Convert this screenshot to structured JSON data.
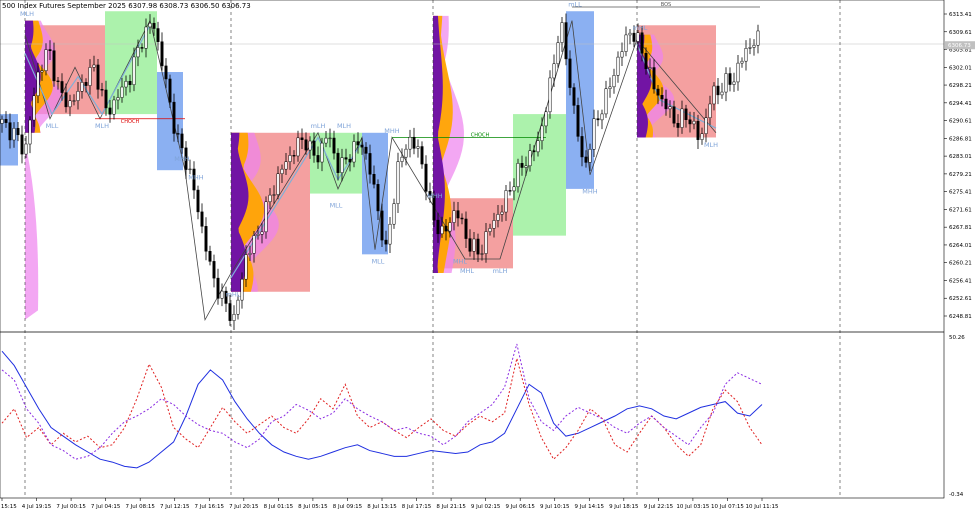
{
  "header": {
    "symbol": "500 Index Futures September 2025",
    "ohlc": "6307.98 6308.73 6306.50 6306.73"
  },
  "colors": {
    "bull": "#000000",
    "bear": "#000000",
    "sell_zone": "#f08080",
    "buy_zone": "#90ee90",
    "mid_zone": "#6495ed",
    "profile_orange": "#ffa500",
    "profile_purple": "#6a0dad",
    "profile_pink": "#ee82ee",
    "osc_blue": "#1f2fe0",
    "osc_red": "#e02020",
    "osc_purple": "#8a2be2"
  },
  "chart_data": [
    {
      "type": "candlestick",
      "title": "",
      "y_ticks": [
        "6313.41",
        "6309.61",
        "6305.81",
        "6302.01",
        "6298.21",
        "6294.41",
        "6290.61",
        "6286.81",
        "6283.01",
        "6279.21",
        "6275.41",
        "6271.61",
        "6267.81",
        "6264.01",
        "6260.21",
        "6256.41",
        "6252.61",
        "6248.81"
      ],
      "price_badge": "6306.73",
      "x_ticks": [
        "4 Jul 15:15",
        "4 Jul 19:15",
        "7 Jul 00:15",
        "7 Jul 04:15",
        "7 Jul 08:15",
        "7 Jul 12:15",
        "7 Jul 16:15",
        "7 Jul 20:15",
        "8 Jul 01:15",
        "8 Jul 05:15",
        "8 Jul 09:15",
        "8 Jul 13:15",
        "8 Jul 17:15",
        "8 Jul 21:15",
        "9 Jul 02:15",
        "9 Jul 06:15",
        "9 Jul 10:15",
        "9 Jul 14:15",
        "9 Jul 18:15",
        "9 Jul 22:15",
        "10 Jul 03:15",
        "10 Jul 07:15",
        "10 Jul 11:15"
      ],
      "labels": [
        "MLL",
        "MLH",
        "MLH",
        "MHH",
        "MHH",
        "mLH",
        "MLL",
        "MHH",
        "MLH",
        "MLL",
        "MHH",
        "mLH",
        "MHL",
        "MHL",
        "mLL",
        "MHH",
        "mHL",
        "MLH",
        "mHL"
      ],
      "choch_label": "CHOCH",
      "bos_label": "BOS",
      "close_path": [
        6290,
        6288,
        6284,
        6300,
        6306,
        6296,
        6294,
        6299,
        6302,
        6292,
        6296,
        6300,
        6308,
        6312,
        6300,
        6287,
        6281,
        6270,
        6258,
        6252,
        6248,
        6262,
        6266,
        6274,
        6280,
        6284,
        6287,
        6282,
        6288,
        6280,
        6284,
        6286,
        6276,
        6262,
        6280,
        6287,
        6283,
        6270,
        6266,
        6272,
        6265,
        6262,
        6268,
        6272,
        6278,
        6282,
        6285,
        6296,
        6312,
        6296,
        6280,
        6290,
        6296,
        6304,
        6310,
        6306,
        6298,
        6294,
        6290,
        6292,
        6286,
        6296,
        6298,
        6300,
        6306,
        6308
      ]
    },
    {
      "type": "line",
      "title": "",
      "y_ticks": [
        "50.26",
        "-0.34"
      ],
      "series": [
        {
          "values": [
            0.95,
            0.85,
            0.7,
            0.55,
            0.42,
            0.36,
            0.3,
            0.25,
            0.2,
            0.18,
            0.15,
            0.14,
            0.18,
            0.25,
            0.32,
            0.5,
            0.72,
            0.82,
            0.75,
            0.6,
            0.48,
            0.38,
            0.3,
            0.25,
            0.22,
            0.2,
            0.22,
            0.25,
            0.28,
            0.3,
            0.26,
            0.24,
            0.22,
            0.22,
            0.24,
            0.26,
            0.25,
            0.24,
            0.25,
            0.3,
            0.32,
            0.38,
            0.55,
            0.72,
            0.66,
            0.45,
            0.36,
            0.38,
            0.42,
            0.46,
            0.5,
            0.55,
            0.57,
            0.55,
            0.5,
            0.48,
            0.52,
            0.56,
            0.58,
            0.6,
            0.52,
            0.5,
            0.58
          ]
        },
        {
          "values": [
            0.45,
            0.55,
            0.35,
            0.42,
            0.3,
            0.38,
            0.32,
            0.36,
            0.28,
            0.3,
            0.42,
            0.62,
            0.86,
            0.7,
            0.42,
            0.34,
            0.28,
            0.42,
            0.56,
            0.46,
            0.38,
            0.44,
            0.5,
            0.42,
            0.38,
            0.48,
            0.62,
            0.55,
            0.72,
            0.5,
            0.42,
            0.46,
            0.4,
            0.35,
            0.42,
            0.48,
            0.4,
            0.36,
            0.44,
            0.5,
            0.46,
            0.52,
            0.9,
            0.58,
            0.35,
            0.2,
            0.28,
            0.4,
            0.55,
            0.48,
            0.3,
            0.25,
            0.38,
            0.5,
            0.42,
            0.3,
            0.22,
            0.3,
            0.55,
            0.68,
            0.6,
            0.42,
            0.3
          ]
        },
        {
          "values": [
            0.82,
            0.75,
            0.55,
            0.45,
            0.3,
            0.26,
            0.2,
            0.22,
            0.28,
            0.38,
            0.46,
            0.5,
            0.55,
            0.62,
            0.58,
            0.5,
            0.44,
            0.4,
            0.38,
            0.32,
            0.28,
            0.34,
            0.46,
            0.5,
            0.58,
            0.54,
            0.48,
            0.52,
            0.62,
            0.55,
            0.5,
            0.46,
            0.4,
            0.42,
            0.38,
            0.36,
            0.3,
            0.36,
            0.46,
            0.52,
            0.58,
            0.7,
            1.0,
            0.62,
            0.46,
            0.4,
            0.5,
            0.56,
            0.52,
            0.48,
            0.42,
            0.38,
            0.45,
            0.5,
            0.42,
            0.36,
            0.3,
            0.42,
            0.52,
            0.72,
            0.8,
            0.76,
            0.72
          ]
        }
      ]
    }
  ]
}
